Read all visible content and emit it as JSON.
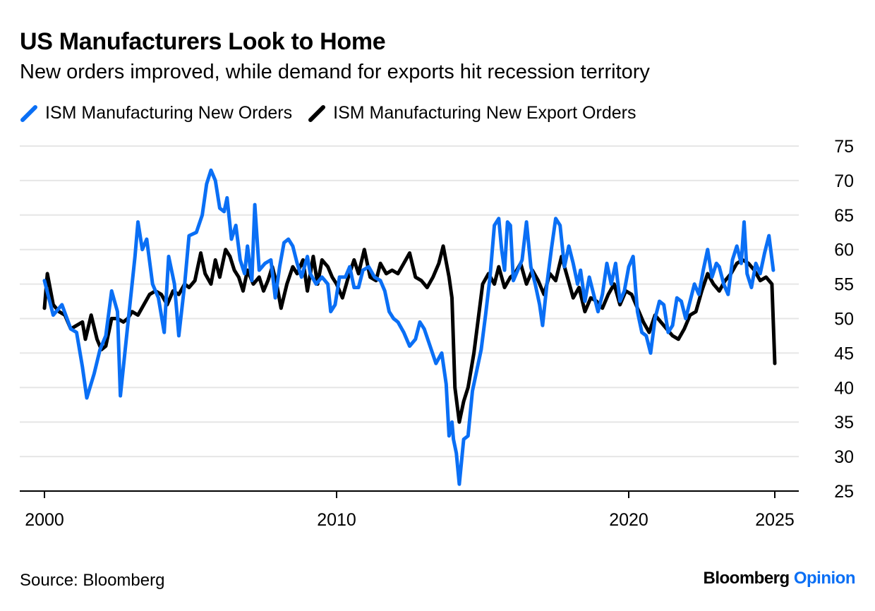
{
  "title": "US Manufacturers Look to Home",
  "subtitle": "New orders improved, while demand for exports hit recession territory",
  "source": "Source: Bloomberg",
  "brand": {
    "first": "Bloomberg",
    "second": "Opinion",
    "first_color": "#000000",
    "second_color": "#0a6ff5"
  },
  "chart_data": {
    "type": "line",
    "title": "US Manufacturers Look to Home",
    "subtitle": "New orders improved, while demand for exports hit recession territory",
    "xlabel": "",
    "ylabel": "",
    "xlim": [
      2000,
      2025
    ],
    "ylim": [
      25,
      75
    ],
    "x_ticks": [
      2000,
      2010,
      2020,
      2025
    ],
    "y_ticks": [
      25,
      30,
      35,
      40,
      45,
      50,
      55,
      60,
      65,
      70,
      75
    ],
    "y_axis_side": "right",
    "grid": "horizontal",
    "legend_position": "top-left",
    "series": [
      {
        "name": "ISM Manufacturing New Orders",
        "color": "#0a6ff5",
        "points": [
          [
            2000.0,
            55.5
          ],
          [
            2000.3,
            50.5
          ],
          [
            2000.6,
            52.0
          ],
          [
            2000.9,
            48.5
          ],
          [
            2001.1,
            48.0
          ],
          [
            2001.3,
            43.0
          ],
          [
            2001.45,
            38.5
          ],
          [
            2001.7,
            42.0
          ],
          [
            2001.9,
            45.5
          ],
          [
            2002.1,
            47.5
          ],
          [
            2002.3,
            54.0
          ],
          [
            2002.5,
            51.0
          ],
          [
            2002.6,
            38.8
          ],
          [
            2002.85,
            49.0
          ],
          [
            2003.1,
            59.0
          ],
          [
            2003.2,
            64.0
          ],
          [
            2003.35,
            60.0
          ],
          [
            2003.5,
            61.5
          ],
          [
            2003.7,
            55.0
          ],
          [
            2003.9,
            53.0
          ],
          [
            2004.1,
            48.0
          ],
          [
            2004.25,
            59.0
          ],
          [
            2004.45,
            55.0
          ],
          [
            2004.6,
            47.5
          ],
          [
            2004.8,
            55.0
          ],
          [
            2004.95,
            62.0
          ],
          [
            2005.2,
            62.5
          ],
          [
            2005.4,
            65.0
          ],
          [
            2005.55,
            69.5
          ],
          [
            2005.7,
            71.5
          ],
          [
            2005.85,
            70.0
          ],
          [
            2006.0,
            66.0
          ],
          [
            2006.15,
            65.5
          ],
          [
            2006.25,
            67.5
          ],
          [
            2006.4,
            61.5
          ],
          [
            2006.55,
            63.5
          ],
          [
            2006.7,
            58.5
          ],
          [
            2006.85,
            56.5
          ],
          [
            2006.95,
            60.5
          ],
          [
            2007.1,
            55.5
          ],
          [
            2007.2,
            66.5
          ],
          [
            2007.35,
            57.0
          ],
          [
            2007.55,
            58.0
          ],
          [
            2007.75,
            58.5
          ],
          [
            2007.9,
            53.0
          ],
          [
            2008.05,
            57.5
          ],
          [
            2008.2,
            61.0
          ],
          [
            2008.35,
            61.5
          ],
          [
            2008.5,
            60.5
          ],
          [
            2008.65,
            58.0
          ],
          [
            2008.8,
            56.0
          ],
          [
            2009.0,
            59.0
          ],
          [
            2009.1,
            56.5
          ],
          [
            2009.3,
            55.0
          ],
          [
            2009.5,
            56.0
          ],
          [
            2009.7,
            55.0
          ],
          [
            2009.8,
            51.0
          ],
          [
            2009.95,
            52.0
          ],
          [
            2010.1,
            56.0
          ],
          [
            2010.3,
            56.0
          ],
          [
            2010.45,
            57.5
          ],
          [
            2010.6,
            54.5
          ],
          [
            2010.75,
            54.5
          ],
          [
            2010.9,
            57.0
          ],
          [
            2011.1,
            57.5
          ],
          [
            2011.3,
            56.0
          ],
          [
            2011.5,
            55.5
          ],
          [
            2011.65,
            54.0
          ],
          [
            2011.8,
            51.0
          ],
          [
            2011.95,
            50.0
          ],
          [
            2012.1,
            49.5
          ],
          [
            2012.3,
            48.0
          ],
          [
            2012.5,
            46.0
          ],
          [
            2012.7,
            47.0
          ],
          [
            2012.85,
            49.5
          ],
          [
            2013.0,
            48.5
          ],
          [
            2013.2,
            46.0
          ],
          [
            2013.4,
            43.5
          ],
          [
            2013.6,
            45.0
          ],
          [
            2013.75,
            40.5
          ],
          [
            2013.85,
            33.0
          ],
          [
            2013.95,
            35.0
          ],
          [
            2014.0,
            32.5
          ],
          [
            2014.1,
            30.5
          ],
          [
            2014.2,
            26.0
          ],
          [
            2014.35,
            32.5
          ],
          [
            2014.5,
            33.0
          ],
          [
            2014.65,
            39.5
          ],
          [
            2014.8,
            42.5
          ],
          [
            2014.95,
            45.5
          ],
          [
            2015.1,
            50.5
          ],
          [
            2015.25,
            56.0
          ],
          [
            2015.4,
            63.5
          ],
          [
            2015.55,
            64.5
          ],
          [
            2015.65,
            60.0
          ],
          [
            2015.75,
            57.0
          ],
          [
            2015.85,
            64.0
          ],
          [
            2015.95,
            63.5
          ],
          [
            2016.05,
            55.5
          ],
          [
            2016.2,
            57.0
          ],
          [
            2016.35,
            58.5
          ],
          [
            2016.5,
            64.0
          ],
          [
            2016.65,
            57.5
          ],
          [
            2016.8,
            55.0
          ],
          [
            2016.95,
            52.0
          ],
          [
            2017.05,
            49.0
          ],
          [
            2017.2,
            55.0
          ],
          [
            2017.35,
            60.0
          ],
          [
            2017.5,
            64.5
          ],
          [
            2017.65,
            63.5
          ],
          [
            2017.8,
            57.5
          ],
          [
            2017.95,
            60.5
          ],
          [
            2018.1,
            58.0
          ],
          [
            2018.25,
            55.0
          ],
          [
            2018.35,
            57.0
          ],
          [
            2018.5,
            52.5
          ],
          [
            2018.65,
            56.0
          ],
          [
            2018.8,
            53.5
          ],
          [
            2018.95,
            51.0
          ],
          [
            2019.1,
            53.5
          ],
          [
            2019.25,
            58.0
          ],
          [
            2019.4,
            55.0
          ],
          [
            2019.55,
            58.0
          ],
          [
            2019.7,
            52.5
          ],
          [
            2019.85,
            54.0
          ],
          [
            2020.0,
            57.5
          ],
          [
            2020.15,
            59.0
          ],
          [
            2020.3,
            51.0
          ],
          [
            2020.45,
            48.0
          ],
          [
            2020.6,
            47.5
          ],
          [
            2020.75,
            45.0
          ],
          [
            2020.9,
            50.0
          ],
          [
            2021.05,
            52.5
          ],
          [
            2021.2,
            52.0
          ],
          [
            2021.35,
            48.0
          ],
          [
            2021.5,
            49.0
          ],
          [
            2021.65,
            53.0
          ],
          [
            2021.8,
            52.5
          ],
          [
            2021.95,
            50.0
          ],
          [
            2022.1,
            52.5
          ],
          [
            2022.25,
            55.0
          ],
          [
            2022.4,
            53.5
          ],
          [
            2022.55,
            57.0
          ],
          [
            2022.7,
            60.0
          ],
          [
            2022.85,
            56.0
          ],
          [
            2023.0,
            58.0
          ],
          [
            2023.1,
            57.5
          ],
          [
            2023.25,
            55.0
          ],
          [
            2023.4,
            53.5
          ],
          [
            2023.55,
            58.5
          ],
          [
            2023.7,
            60.5
          ],
          [
            2023.85,
            58.0
          ],
          [
            2023.95,
            64.0
          ],
          [
            2024.05,
            56.5
          ],
          [
            2024.2,
            54.5
          ],
          [
            2024.35,
            58.0
          ],
          [
            2024.5,
            56.5
          ],
          [
            2024.65,
            59.5
          ],
          [
            2024.8,
            62.0
          ],
          [
            2024.95,
            57.0
          ]
        ]
      },
      {
        "name": "ISM Manufacturing New Export Orders",
        "color": "#000000",
        "points": [
          [
            2000.0,
            51.5
          ],
          [
            2000.1,
            56.5
          ],
          [
            2000.3,
            52.0
          ],
          [
            2000.5,
            51.0
          ],
          [
            2000.7,
            50.5
          ],
          [
            2000.9,
            48.5
          ],
          [
            2001.1,
            49.0
          ],
          [
            2001.3,
            49.5
          ],
          [
            2001.4,
            47.0
          ],
          [
            2001.6,
            50.5
          ],
          [
            2001.8,
            47.0
          ],
          [
            2001.95,
            45.5
          ],
          [
            2002.1,
            46.0
          ],
          [
            2002.3,
            50.0
          ],
          [
            2002.5,
            50.0
          ],
          [
            2002.7,
            49.5
          ],
          [
            2002.85,
            50.0
          ],
          [
            2003.0,
            51.0
          ],
          [
            2003.2,
            50.5
          ],
          [
            2003.4,
            52.0
          ],
          [
            2003.6,
            53.5
          ],
          [
            2003.8,
            54.0
          ],
          [
            2004.0,
            53.5
          ],
          [
            2004.2,
            52.0
          ],
          [
            2004.4,
            54.0
          ],
          [
            2004.6,
            53.5
          ],
          [
            2004.8,
            55.0
          ],
          [
            2004.95,
            54.5
          ],
          [
            2005.15,
            55.5
          ],
          [
            2005.35,
            59.5
          ],
          [
            2005.5,
            56.5
          ],
          [
            2005.7,
            55.0
          ],
          [
            2005.85,
            58.5
          ],
          [
            2006.0,
            56.0
          ],
          [
            2006.2,
            60.0
          ],
          [
            2006.35,
            59.0
          ],
          [
            2006.5,
            57.0
          ],
          [
            2006.65,
            56.0
          ],
          [
            2006.8,
            54.0
          ],
          [
            2006.95,
            57.0
          ],
          [
            2007.15,
            55.0
          ],
          [
            2007.35,
            56.0
          ],
          [
            2007.5,
            54.0
          ],
          [
            2007.65,
            55.5
          ],
          [
            2007.8,
            57.5
          ],
          [
            2007.95,
            55.0
          ],
          [
            2008.1,
            51.5
          ],
          [
            2008.3,
            55.0
          ],
          [
            2008.5,
            57.5
          ],
          [
            2008.65,
            56.5
          ],
          [
            2008.85,
            58.5
          ],
          [
            2009.0,
            54.0
          ],
          [
            2009.2,
            59.0
          ],
          [
            2009.35,
            55.0
          ],
          [
            2009.5,
            58.5
          ],
          [
            2009.7,
            57.5
          ],
          [
            2009.85,
            56.0
          ],
          [
            2010.0,
            55.0
          ],
          [
            2010.2,
            53.0
          ],
          [
            2010.4,
            56.0
          ],
          [
            2010.6,
            58.5
          ],
          [
            2010.75,
            56.5
          ],
          [
            2010.95,
            60.0
          ],
          [
            2011.15,
            56.0
          ],
          [
            2011.35,
            55.5
          ],
          [
            2011.5,
            58.0
          ],
          [
            2011.7,
            56.5
          ],
          [
            2011.9,
            57.0
          ],
          [
            2012.1,
            56.5
          ],
          [
            2012.3,
            58.0
          ],
          [
            2012.5,
            59.5
          ],
          [
            2012.7,
            56.0
          ],
          [
            2012.9,
            55.5
          ],
          [
            2013.1,
            54.5
          ],
          [
            2013.3,
            56.0
          ],
          [
            2013.5,
            58.0
          ],
          [
            2013.65,
            60.5
          ],
          [
            2013.85,
            56.0
          ],
          [
            2013.95,
            53.0
          ],
          [
            2014.05,
            40.0
          ],
          [
            2014.2,
            35.0
          ],
          [
            2014.35,
            38.0
          ],
          [
            2014.5,
            40.0
          ],
          [
            2014.7,
            45.0
          ],
          [
            2014.85,
            50.0
          ],
          [
            2015.0,
            55.0
          ],
          [
            2015.2,
            56.5
          ],
          [
            2015.4,
            55.0
          ],
          [
            2015.55,
            57.5
          ],
          [
            2015.75,
            54.5
          ],
          [
            2015.95,
            56.0
          ],
          [
            2016.1,
            56.5
          ],
          [
            2016.3,
            58.0
          ],
          [
            2016.5,
            55.0
          ],
          [
            2016.7,
            57.0
          ],
          [
            2016.9,
            55.5
          ],
          [
            2017.1,
            53.5
          ],
          [
            2017.3,
            56.5
          ],
          [
            2017.5,
            55.5
          ],
          [
            2017.7,
            59.0
          ],
          [
            2017.9,
            56.0
          ],
          [
            2018.1,
            53.0
          ],
          [
            2018.3,
            54.5
          ],
          [
            2018.5,
            51.0
          ],
          [
            2018.7,
            53.0
          ],
          [
            2018.9,
            52.5
          ],
          [
            2019.1,
            51.5
          ],
          [
            2019.3,
            53.5
          ],
          [
            2019.5,
            55.0
          ],
          [
            2019.7,
            52.0
          ],
          [
            2019.9,
            54.0
          ],
          [
            2020.1,
            53.5
          ],
          [
            2020.3,
            51.5
          ],
          [
            2020.5,
            49.5
          ],
          [
            2020.7,
            48.0
          ],
          [
            2020.9,
            50.5
          ],
          [
            2021.1,
            49.5
          ],
          [
            2021.3,
            48.5
          ],
          [
            2021.5,
            47.5
          ],
          [
            2021.7,
            47.0
          ],
          [
            2021.9,
            48.5
          ],
          [
            2022.1,
            50.5
          ],
          [
            2022.3,
            51.0
          ],
          [
            2022.5,
            54.0
          ],
          [
            2022.7,
            56.5
          ],
          [
            2022.9,
            55.0
          ],
          [
            2023.1,
            54.0
          ],
          [
            2023.3,
            55.5
          ],
          [
            2023.5,
            56.5
          ],
          [
            2023.7,
            58.0
          ],
          [
            2023.9,
            58.5
          ],
          [
            2024.1,
            58.0
          ],
          [
            2024.3,
            57.0
          ],
          [
            2024.5,
            55.5
          ],
          [
            2024.7,
            56.0
          ],
          [
            2024.9,
            55.0
          ],
          [
            2025.0,
            43.5
          ]
        ]
      }
    ]
  }
}
